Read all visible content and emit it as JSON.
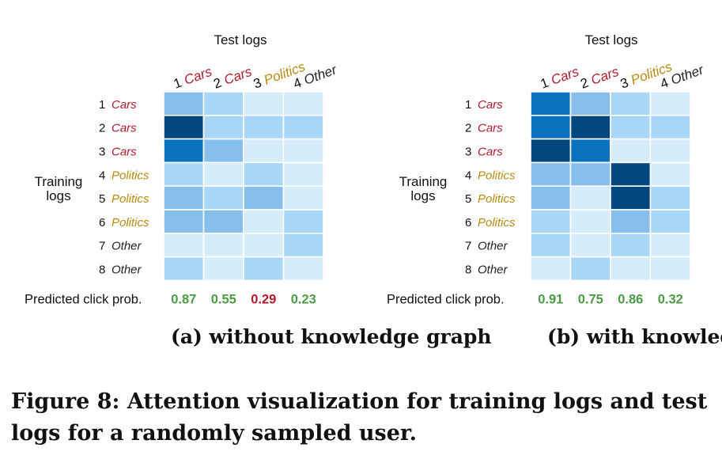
{
  "colors": {
    "cars": "#b01b2e",
    "politics": "#b88a12",
    "other": "#222222",
    "prob_high": "#4c9a44",
    "prob_low": "#b01b2e",
    "levels": [
      "#d6ecfa",
      "#a8d6f7",
      "#86bfec",
      "#0b72c0",
      "#02477f"
    ]
  },
  "chart_data": [
    {
      "type": "heatmap",
      "subtitle": "(a) without knowledge graph",
      "xlabel": "Test logs",
      "ylabel": "Training logs",
      "test_logs": [
        {
          "num": "1",
          "cat": "Cars",
          "cls": "cars"
        },
        {
          "num": "2",
          "cat": "Cars",
          "cls": "cars"
        },
        {
          "num": "3",
          "cat": "Politics",
          "cls": "politics"
        },
        {
          "num": "4",
          "cat": "Other",
          "cls": "other"
        }
      ],
      "training_logs": [
        {
          "num": "1",
          "cat": "Cars",
          "cls": "cars"
        },
        {
          "num": "2",
          "cat": "Cars",
          "cls": "cars"
        },
        {
          "num": "3",
          "cat": "Cars",
          "cls": "cars"
        },
        {
          "num": "4",
          "cat": "Politics",
          "cls": "politics"
        },
        {
          "num": "5",
          "cat": "Politics",
          "cls": "politics"
        },
        {
          "num": "6",
          "cat": "Politics",
          "cls": "politics"
        },
        {
          "num": "7",
          "cat": "Other",
          "cls": "other"
        },
        {
          "num": "8",
          "cat": "Other",
          "cls": "other"
        }
      ],
      "attention_levels": [
        [
          2,
          1,
          0,
          0
        ],
        [
          4,
          1,
          1,
          1
        ],
        [
          3,
          2,
          0,
          0
        ],
        [
          1,
          0,
          1,
          0
        ],
        [
          2,
          1,
          2,
          0
        ],
        [
          2,
          2,
          0,
          1
        ],
        [
          0,
          0,
          0,
          1
        ],
        [
          1,
          0,
          1,
          0
        ]
      ],
      "prob_label": "Predicted click prob.",
      "probs": [
        {
          "text": "0.87",
          "cls": "prob_high"
        },
        {
          "text": "0.55",
          "cls": "prob_high"
        },
        {
          "text": "0.29",
          "cls": "prob_low"
        },
        {
          "text": "0.23",
          "cls": "prob_high"
        }
      ]
    },
    {
      "type": "heatmap",
      "subtitle": "(b) with knowledge graph",
      "xlabel": "Test logs",
      "ylabel": "Training logs",
      "test_logs": [
        {
          "num": "1",
          "cat": "Cars",
          "cls": "cars"
        },
        {
          "num": "2",
          "cat": "Cars",
          "cls": "cars"
        },
        {
          "num": "3",
          "cat": "Politics",
          "cls": "politics"
        },
        {
          "num": "4",
          "cat": "Other",
          "cls": "other"
        }
      ],
      "training_logs": [
        {
          "num": "1",
          "cat": "Cars",
          "cls": "cars"
        },
        {
          "num": "2",
          "cat": "Cars",
          "cls": "cars"
        },
        {
          "num": "3",
          "cat": "Cars",
          "cls": "cars"
        },
        {
          "num": "4",
          "cat": "Politics",
          "cls": "politics"
        },
        {
          "num": "5",
          "cat": "Politics",
          "cls": "politics"
        },
        {
          "num": "6",
          "cat": "Politics",
          "cls": "politics"
        },
        {
          "num": "7",
          "cat": "Other",
          "cls": "other"
        },
        {
          "num": "8",
          "cat": "Other",
          "cls": "other"
        }
      ],
      "attention_levels": [
        [
          3,
          2,
          1,
          0
        ],
        [
          3,
          4,
          1,
          1
        ],
        [
          4,
          3,
          0,
          0
        ],
        [
          2,
          2,
          4,
          0
        ],
        [
          2,
          0,
          4,
          1
        ],
        [
          1,
          0,
          2,
          1
        ],
        [
          1,
          0,
          1,
          0
        ],
        [
          0,
          1,
          0,
          0
        ]
      ],
      "prob_label": "Predicted click prob.",
      "probs": [
        {
          "text": "0.91",
          "cls": "prob_high"
        },
        {
          "text": "0.75",
          "cls": "prob_high"
        },
        {
          "text": "0.86",
          "cls": "prob_high"
        },
        {
          "text": "0.32",
          "cls": "prob_high"
        }
      ]
    }
  ],
  "caption": {
    "line1": "Figure 8: Attention visualization for training logs and test",
    "line2": "logs for a randomly sampled user."
  }
}
